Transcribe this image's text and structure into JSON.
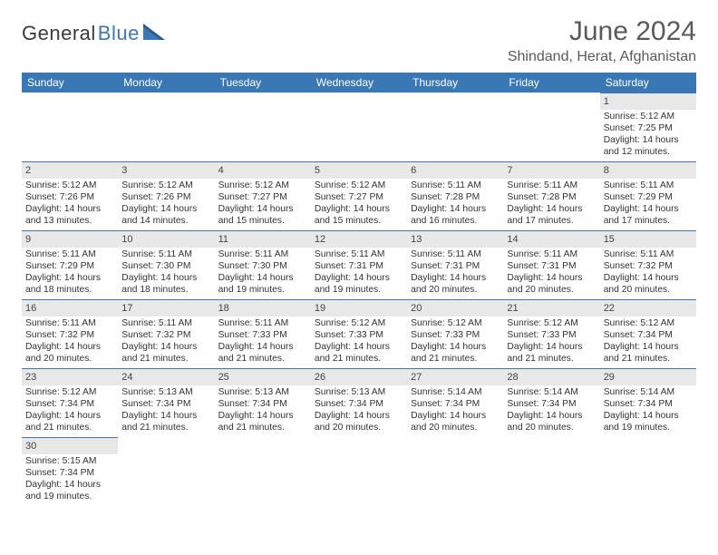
{
  "logo": {
    "general": "General",
    "blue": "Blue"
  },
  "title": "June 2024",
  "location": "Shindand, Herat, Afghanistan",
  "colors": {
    "header_bg": "#3a78b5",
    "header_fg": "#ffffff",
    "daynum_bg": "#e8e8e8",
    "divider": "#3a78b5",
    "text": "#333333",
    "title_fg": "#5a5a5a"
  },
  "day_headers": [
    "Sunday",
    "Monday",
    "Tuesday",
    "Wednesday",
    "Thursday",
    "Friday",
    "Saturday"
  ],
  "weeks": [
    [
      null,
      null,
      null,
      null,
      null,
      null,
      {
        "n": "1",
        "sunrise": "Sunrise: 5:12 AM",
        "sunset": "Sunset: 7:25 PM",
        "daylight1": "Daylight: 14 hours",
        "daylight2": "and 12 minutes."
      }
    ],
    [
      {
        "n": "2",
        "sunrise": "Sunrise: 5:12 AM",
        "sunset": "Sunset: 7:26 PM",
        "daylight1": "Daylight: 14 hours",
        "daylight2": "and 13 minutes."
      },
      {
        "n": "3",
        "sunrise": "Sunrise: 5:12 AM",
        "sunset": "Sunset: 7:26 PM",
        "daylight1": "Daylight: 14 hours",
        "daylight2": "and 14 minutes."
      },
      {
        "n": "4",
        "sunrise": "Sunrise: 5:12 AM",
        "sunset": "Sunset: 7:27 PM",
        "daylight1": "Daylight: 14 hours",
        "daylight2": "and 15 minutes."
      },
      {
        "n": "5",
        "sunrise": "Sunrise: 5:12 AM",
        "sunset": "Sunset: 7:27 PM",
        "daylight1": "Daylight: 14 hours",
        "daylight2": "and 15 minutes."
      },
      {
        "n": "6",
        "sunrise": "Sunrise: 5:11 AM",
        "sunset": "Sunset: 7:28 PM",
        "daylight1": "Daylight: 14 hours",
        "daylight2": "and 16 minutes."
      },
      {
        "n": "7",
        "sunrise": "Sunrise: 5:11 AM",
        "sunset": "Sunset: 7:28 PM",
        "daylight1": "Daylight: 14 hours",
        "daylight2": "and 17 minutes."
      },
      {
        "n": "8",
        "sunrise": "Sunrise: 5:11 AM",
        "sunset": "Sunset: 7:29 PM",
        "daylight1": "Daylight: 14 hours",
        "daylight2": "and 17 minutes."
      }
    ],
    [
      {
        "n": "9",
        "sunrise": "Sunrise: 5:11 AM",
        "sunset": "Sunset: 7:29 PM",
        "daylight1": "Daylight: 14 hours",
        "daylight2": "and 18 minutes."
      },
      {
        "n": "10",
        "sunrise": "Sunrise: 5:11 AM",
        "sunset": "Sunset: 7:30 PM",
        "daylight1": "Daylight: 14 hours",
        "daylight2": "and 18 minutes."
      },
      {
        "n": "11",
        "sunrise": "Sunrise: 5:11 AM",
        "sunset": "Sunset: 7:30 PM",
        "daylight1": "Daylight: 14 hours",
        "daylight2": "and 19 minutes."
      },
      {
        "n": "12",
        "sunrise": "Sunrise: 5:11 AM",
        "sunset": "Sunset: 7:31 PM",
        "daylight1": "Daylight: 14 hours",
        "daylight2": "and 19 minutes."
      },
      {
        "n": "13",
        "sunrise": "Sunrise: 5:11 AM",
        "sunset": "Sunset: 7:31 PM",
        "daylight1": "Daylight: 14 hours",
        "daylight2": "and 20 minutes."
      },
      {
        "n": "14",
        "sunrise": "Sunrise: 5:11 AM",
        "sunset": "Sunset: 7:31 PM",
        "daylight1": "Daylight: 14 hours",
        "daylight2": "and 20 minutes."
      },
      {
        "n": "15",
        "sunrise": "Sunrise: 5:11 AM",
        "sunset": "Sunset: 7:32 PM",
        "daylight1": "Daylight: 14 hours",
        "daylight2": "and 20 minutes."
      }
    ],
    [
      {
        "n": "16",
        "sunrise": "Sunrise: 5:11 AM",
        "sunset": "Sunset: 7:32 PM",
        "daylight1": "Daylight: 14 hours",
        "daylight2": "and 20 minutes."
      },
      {
        "n": "17",
        "sunrise": "Sunrise: 5:11 AM",
        "sunset": "Sunset: 7:32 PM",
        "daylight1": "Daylight: 14 hours",
        "daylight2": "and 21 minutes."
      },
      {
        "n": "18",
        "sunrise": "Sunrise: 5:11 AM",
        "sunset": "Sunset: 7:33 PM",
        "daylight1": "Daylight: 14 hours",
        "daylight2": "and 21 minutes."
      },
      {
        "n": "19",
        "sunrise": "Sunrise: 5:12 AM",
        "sunset": "Sunset: 7:33 PM",
        "daylight1": "Daylight: 14 hours",
        "daylight2": "and 21 minutes."
      },
      {
        "n": "20",
        "sunrise": "Sunrise: 5:12 AM",
        "sunset": "Sunset: 7:33 PM",
        "daylight1": "Daylight: 14 hours",
        "daylight2": "and 21 minutes."
      },
      {
        "n": "21",
        "sunrise": "Sunrise: 5:12 AM",
        "sunset": "Sunset: 7:33 PM",
        "daylight1": "Daylight: 14 hours",
        "daylight2": "and 21 minutes."
      },
      {
        "n": "22",
        "sunrise": "Sunrise: 5:12 AM",
        "sunset": "Sunset: 7:34 PM",
        "daylight1": "Daylight: 14 hours",
        "daylight2": "and 21 minutes."
      }
    ],
    [
      {
        "n": "23",
        "sunrise": "Sunrise: 5:12 AM",
        "sunset": "Sunset: 7:34 PM",
        "daylight1": "Daylight: 14 hours",
        "daylight2": "and 21 minutes."
      },
      {
        "n": "24",
        "sunrise": "Sunrise: 5:13 AM",
        "sunset": "Sunset: 7:34 PM",
        "daylight1": "Daylight: 14 hours",
        "daylight2": "and 21 minutes."
      },
      {
        "n": "25",
        "sunrise": "Sunrise: 5:13 AM",
        "sunset": "Sunset: 7:34 PM",
        "daylight1": "Daylight: 14 hours",
        "daylight2": "and 21 minutes."
      },
      {
        "n": "26",
        "sunrise": "Sunrise: 5:13 AM",
        "sunset": "Sunset: 7:34 PM",
        "daylight1": "Daylight: 14 hours",
        "daylight2": "and 20 minutes."
      },
      {
        "n": "27",
        "sunrise": "Sunrise: 5:14 AM",
        "sunset": "Sunset: 7:34 PM",
        "daylight1": "Daylight: 14 hours",
        "daylight2": "and 20 minutes."
      },
      {
        "n": "28",
        "sunrise": "Sunrise: 5:14 AM",
        "sunset": "Sunset: 7:34 PM",
        "daylight1": "Daylight: 14 hours",
        "daylight2": "and 20 minutes."
      },
      {
        "n": "29",
        "sunrise": "Sunrise: 5:14 AM",
        "sunset": "Sunset: 7:34 PM",
        "daylight1": "Daylight: 14 hours",
        "daylight2": "and 19 minutes."
      }
    ],
    [
      {
        "n": "30",
        "sunrise": "Sunrise: 5:15 AM",
        "sunset": "Sunset: 7:34 PM",
        "daylight1": "Daylight: 14 hours",
        "daylight2": "and 19 minutes."
      },
      null,
      null,
      null,
      null,
      null,
      null
    ]
  ]
}
